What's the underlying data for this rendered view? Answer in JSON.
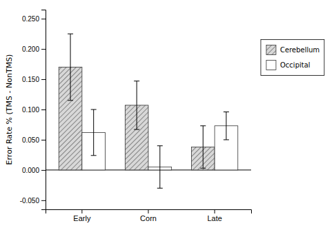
{
  "chart_data": {
    "type": "bar",
    "categories": [
      "Early",
      "Corn",
      "Late"
    ],
    "series": [
      {
        "name": "Cerebellum",
        "color": "#d8d8d8",
        "values": [
          0.17,
          0.107,
          0.038
        ],
        "errors": [
          0.055,
          0.04,
          0.035
        ]
      },
      {
        "name": "Occipital",
        "color": "#ffffff",
        "values": [
          0.062,
          0.005,
          0.073
        ],
        "errors": [
          0.038,
          0.035,
          0.023
        ]
      }
    ],
    "ylabel": "Error Rate % (TMS - NonTMS)",
    "ylim": [
      -0.065,
      0.265
    ],
    "yticks": [
      {
        "value": -0.05,
        "label": "-0.050"
      },
      {
        "value": 0.0,
        "label": "0.000"
      },
      {
        "value": 0.05,
        "label": "0.050"
      },
      {
        "value": 0.1,
        "label": "0.100"
      },
      {
        "value": 0.15,
        "label": "0.150"
      },
      {
        "value": 0.2,
        "label": "0.200"
      },
      {
        "value": 0.25,
        "label": "0.250"
      }
    ],
    "grid": false,
    "legend": "right"
  }
}
